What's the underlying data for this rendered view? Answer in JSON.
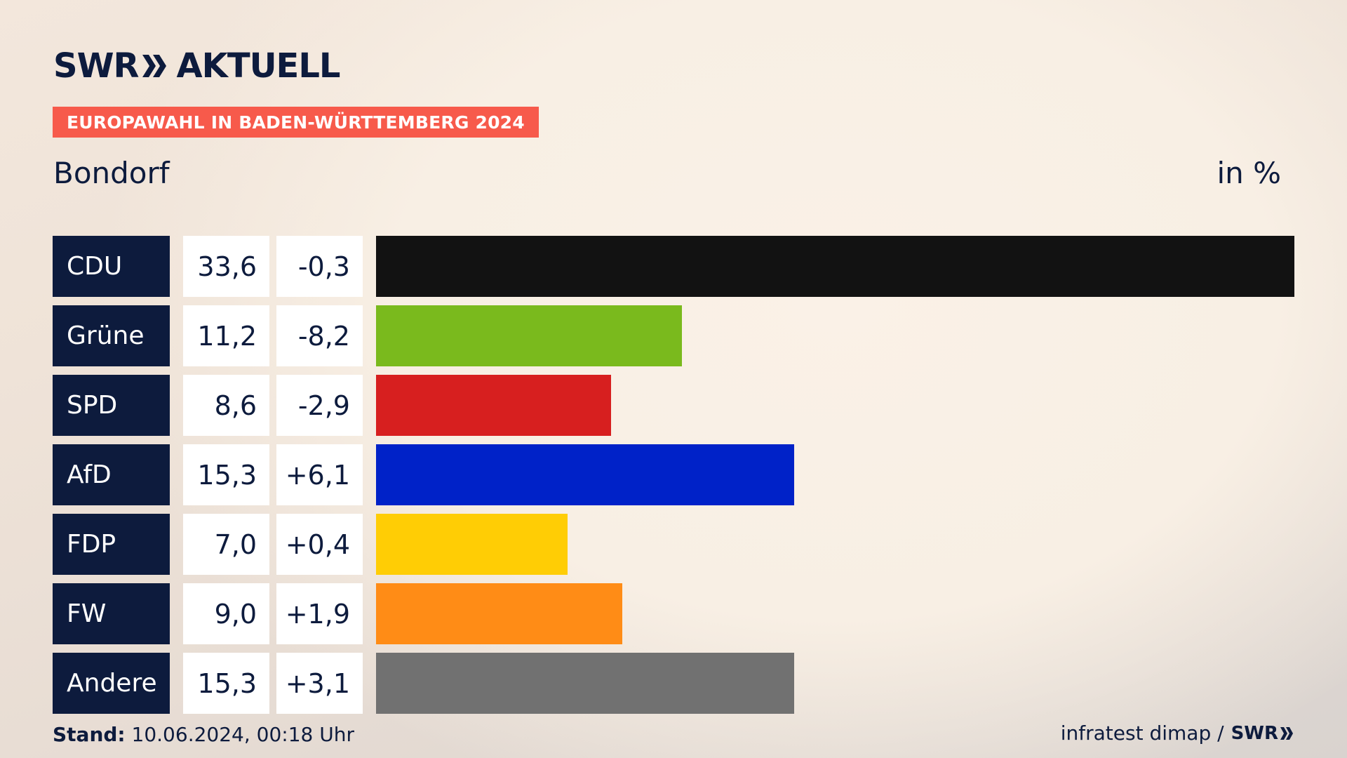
{
  "brand": {
    "name": "SWR",
    "product": "AKTUELL"
  },
  "badge": "EUROPAWAHL IN BADEN-WÜRTTEMBERG 2024",
  "place": "Bondorf",
  "unit": "in %",
  "footer": {
    "stand_label": "Stand:",
    "stand_value": "10.06.2024, 00:18 Uhr",
    "source": "infratest dimap /",
    "source_logo": "SWR"
  },
  "colors": {
    "navy": "#0d1b3d",
    "badge": "#f75a4b"
  },
  "chart_data": {
    "type": "bar",
    "orientation": "horizontal",
    "xlim": [
      0,
      33.6
    ],
    "categories": [
      "CDU",
      "Grüne",
      "SPD",
      "AfD",
      "FDP",
      "FW",
      "Andere"
    ],
    "values": [
      33.6,
      11.2,
      8.6,
      15.3,
      7.0,
      9.0,
      15.3
    ],
    "value_labels": [
      "33,6",
      "11,2",
      "8,6",
      "15,3",
      "7,0",
      "9,0",
      "15,3"
    ],
    "changes": [
      -0.3,
      -8.2,
      -2.9,
      6.1,
      0.4,
      1.9,
      3.1
    ],
    "change_labels": [
      "-0,3",
      "-8,2",
      "-2,9",
      "+6,1",
      "+0,4",
      "+1,9",
      "+3,1"
    ],
    "bar_colors": [
      "#121212",
      "#7aba1d",
      "#d71f1f",
      "#0022c8",
      "#ffcd05",
      "#ff8c16",
      "#717171"
    ]
  }
}
